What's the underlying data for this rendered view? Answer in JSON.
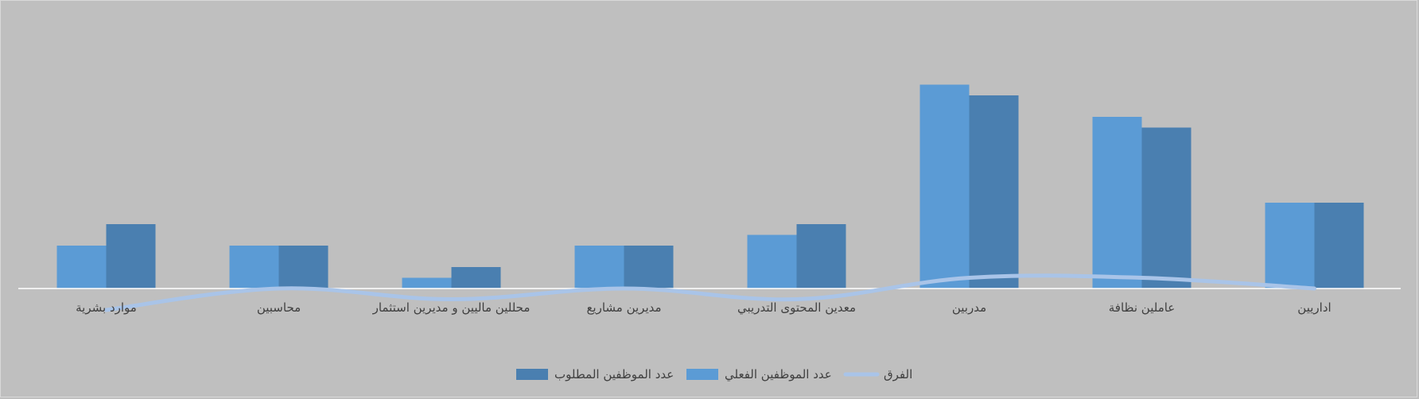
{
  "chart_data": {
    "type": "bar",
    "categories": [
      "اداريين",
      "عاملين نظافة",
      "مدربين",
      "معدين المحتوى التدريبي",
      "مديرين مشاريع",
      "محللين ماليين و مديرين استثمار",
      "محاسبين",
      "موارد بشرية"
    ],
    "series": [
      {
        "name": "عدد الموظفين الفعلي",
        "type": "bar",
        "values": [
          8,
          16,
          19,
          5,
          4,
          1,
          4,
          4
        ]
      },
      {
        "name": "عدد الموظفين المطلوب",
        "type": "bar",
        "values": [
          8,
          15,
          18,
          6,
          4,
          2,
          4,
          6
        ]
      },
      {
        "name": "الفرق",
        "type": "line",
        "values": [
          0,
          1,
          1,
          -1,
          0,
          -1,
          0,
          -2
        ]
      }
    ],
    "ylim": [
      -2,
      20
    ],
    "legend_position": "bottom",
    "grid": false,
    "colors": {
      "background": "#bfbfbf",
      "actual": "#5b9bd5",
      "required": "#4a7fb0",
      "difference": "#a9c4e8",
      "axis": "#ffffff",
      "text": "#404040"
    }
  }
}
